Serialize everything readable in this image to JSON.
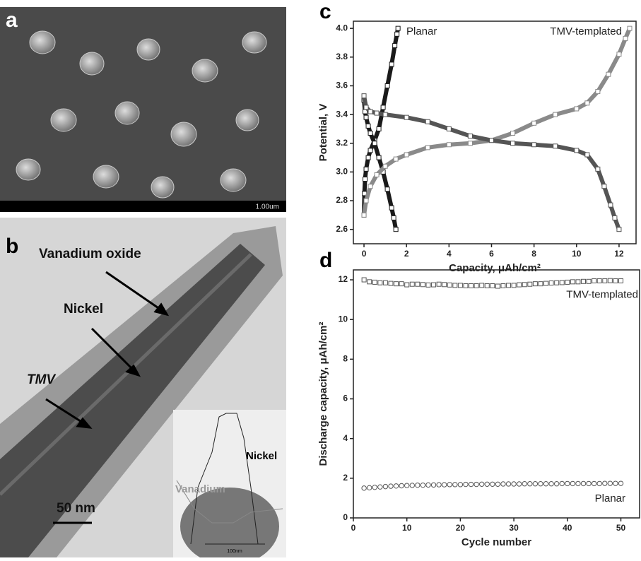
{
  "panels": {
    "a": {
      "letter": "a",
      "scale_bar": "1.00um"
    },
    "b": {
      "letter": "b",
      "labels": [
        "Vanadium oxide",
        "Nickel",
        "TMV"
      ],
      "scale_bar": "50 nm",
      "inset": {
        "nickel": "Nickel",
        "vanadium": "Vanadium",
        "scale_bar": "100nm"
      }
    }
  },
  "chart_data": [
    {
      "type": "line",
      "panel": "c",
      "ylabel": "Potential, V",
      "xlabel": "Capacity, μAh/cm²",
      "annotations": [
        "Planar",
        "TMV-templated"
      ],
      "xlim": [
        -0.5,
        12.8
      ],
      "xticks": [
        0,
        2,
        4,
        6,
        8,
        10,
        12
      ],
      "ylim": [
        2.5,
        4.05
      ],
      "yticks": [
        {
          "value": 2.6,
          "label": "2.6"
        },
        {
          "value": 2.8,
          "label": "2.8"
        },
        {
          "value": 3.0,
          "label": "3.0"
        },
        {
          "value": 3.2,
          "label": "3.2"
        },
        {
          "value": 3.4,
          "label": "3.4"
        },
        {
          "value": 3.6,
          "label": "3.6"
        },
        {
          "value": 3.8,
          "label": "3.8"
        },
        {
          "value": 4.0,
          "label": "4.0"
        }
      ],
      "series": [
        {
          "color": "#1a1a1a",
          "x": [
            0,
            0.02,
            0.05,
            0.1,
            0.2,
            0.3,
            0.5,
            0.7,
            0.9,
            1.1,
            1.3,
            1.45,
            1.55,
            1.6
          ],
          "values": [
            2.7,
            2.85,
            2.95,
            3.02,
            3.1,
            3.15,
            3.22,
            3.3,
            3.45,
            3.6,
            3.75,
            3.88,
            3.96,
            4.0
          ]
        },
        {
          "color": "#1a1a1a",
          "x": [
            0,
            0.05,
            0.1,
            0.2,
            0.3,
            0.5,
            0.7,
            0.9,
            1.1,
            1.3,
            1.4,
            1.5
          ],
          "values": [
            3.5,
            3.42,
            3.38,
            3.32,
            3.27,
            3.2,
            3.1,
            3.0,
            2.88,
            2.75,
            2.68,
            2.6
          ]
        },
        {
          "color": "#8a8a8a",
          "x": [
            0,
            0.1,
            0.3,
            0.6,
            1,
            1.5,
            2,
            3,
            4,
            5,
            6,
            7,
            8,
            9,
            10,
            10.5,
            11,
            11.5,
            12,
            12.3,
            12.5
          ],
          "values": [
            2.7,
            2.8,
            2.9,
            2.98,
            3.04,
            3.09,
            3.12,
            3.17,
            3.19,
            3.2,
            3.22,
            3.27,
            3.34,
            3.4,
            3.44,
            3.48,
            3.56,
            3.68,
            3.82,
            3.93,
            4.0
          ]
        },
        {
          "color": "#555555",
          "x": [
            0,
            0.1,
            0.3,
            0.6,
            1,
            2,
            3,
            4,
            5,
            6,
            7,
            8,
            9,
            10,
            10.5,
            11,
            11.3,
            11.6,
            11.8,
            12
          ],
          "values": [
            3.53,
            3.45,
            3.42,
            3.41,
            3.4,
            3.38,
            3.35,
            3.3,
            3.25,
            3.22,
            3.2,
            3.19,
            3.18,
            3.15,
            3.12,
            3.02,
            2.9,
            2.77,
            2.68,
            2.6
          ]
        }
      ]
    },
    {
      "type": "scatter",
      "panel": "d",
      "ylabel": "Discharge capacity, μAh/cm²",
      "xlabel": "Cycle number",
      "xlim": [
        0,
        53.5
      ],
      "xticks": [
        0,
        10,
        20,
        30,
        40,
        50
      ],
      "ylim": [
        0,
        12.5
      ],
      "yticks": [
        0,
        2,
        4,
        6,
        8,
        10,
        12
      ],
      "x": [
        2,
        3,
        4,
        5,
        6,
        7,
        8,
        9,
        10,
        11,
        12,
        13,
        14,
        15,
        16,
        17,
        18,
        19,
        20,
        21,
        22,
        23,
        24,
        25,
        26,
        27,
        28,
        29,
        30,
        31,
        32,
        33,
        34,
        35,
        36,
        37,
        38,
        39,
        40,
        41,
        42,
        43,
        44,
        45,
        46,
        47,
        48,
        49,
        50
      ],
      "series": [
        {
          "name": "TMV-templated",
          "marker": "square",
          "color": "#555555",
          "values": [
            12.0,
            11.9,
            11.88,
            11.85,
            11.85,
            11.82,
            11.8,
            11.8,
            11.75,
            11.78,
            11.78,
            11.76,
            11.74,
            11.75,
            11.78,
            11.76,
            11.74,
            11.72,
            11.72,
            11.7,
            11.7,
            11.7,
            11.72,
            11.7,
            11.7,
            11.68,
            11.7,
            11.72,
            11.72,
            11.75,
            11.76,
            11.78,
            11.8,
            11.8,
            11.82,
            11.84,
            11.85,
            11.86,
            11.88,
            11.9,
            11.9,
            11.92,
            11.92,
            11.95,
            11.95,
            11.95,
            11.96,
            11.95,
            11.95
          ]
        },
        {
          "name": "Planar",
          "marker": "circle",
          "color": "#555555",
          "values": [
            1.5,
            1.52,
            1.54,
            1.56,
            1.58,
            1.6,
            1.61,
            1.62,
            1.63,
            1.64,
            1.65,
            1.65,
            1.66,
            1.66,
            1.67,
            1.67,
            1.68,
            1.68,
            1.68,
            1.69,
            1.69,
            1.69,
            1.7,
            1.7,
            1.7,
            1.7,
            1.71,
            1.71,
            1.71,
            1.71,
            1.72,
            1.72,
            1.72,
            1.72,
            1.72,
            1.72,
            1.72,
            1.73,
            1.73,
            1.73,
            1.73,
            1.73,
            1.73,
            1.73,
            1.73,
            1.74,
            1.74,
            1.74,
            1.74
          ]
        }
      ]
    }
  ]
}
